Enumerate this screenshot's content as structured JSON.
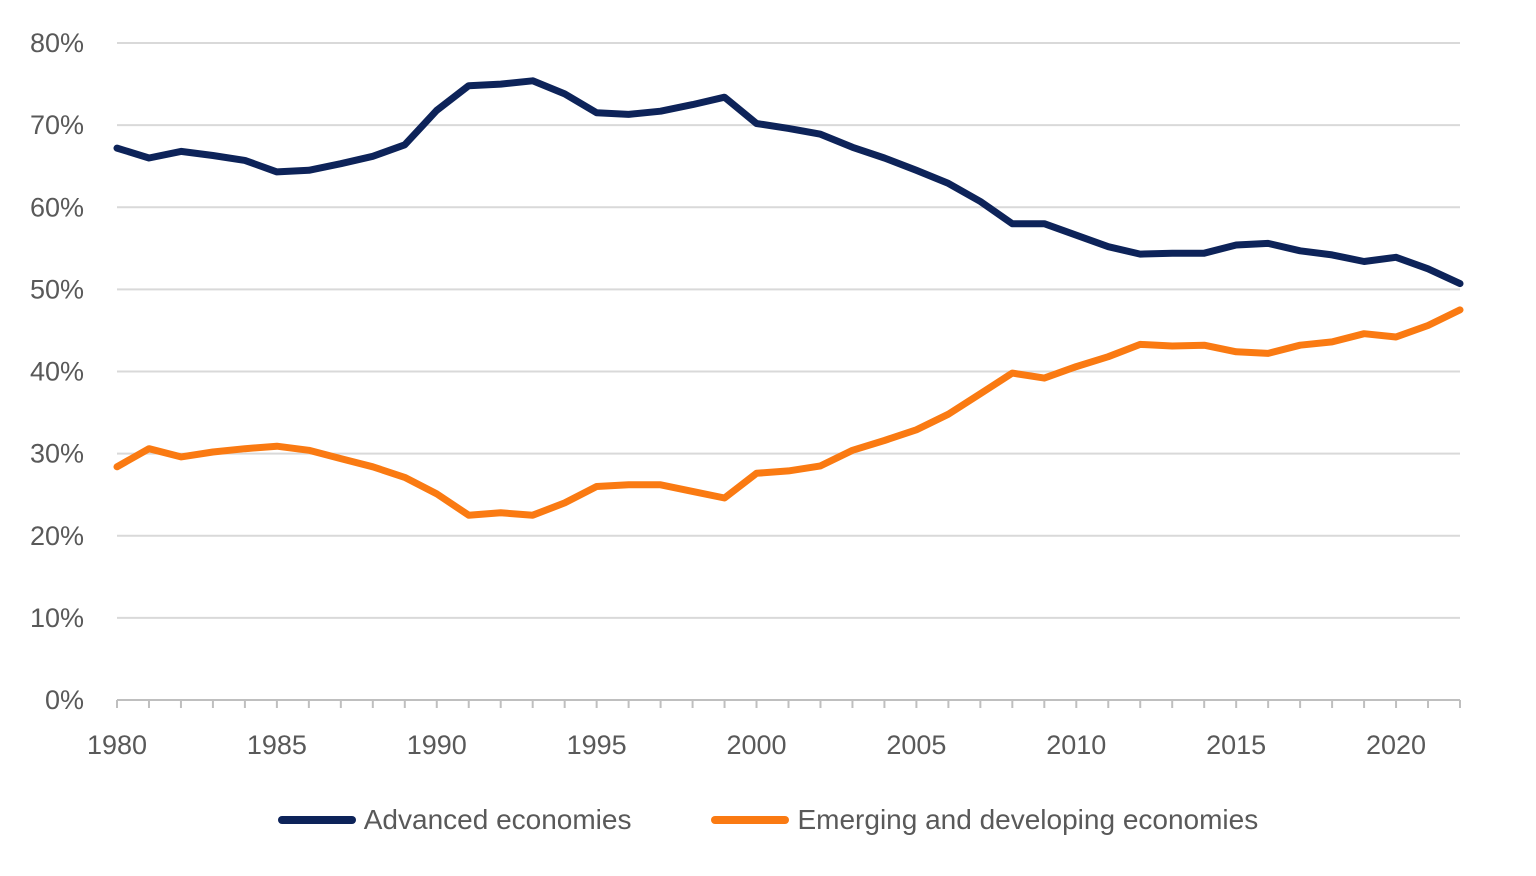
{
  "chart_data": {
    "type": "line",
    "title": "",
    "xlabel": "",
    "ylabel": "",
    "x": [
      1980,
      1981,
      1982,
      1983,
      1984,
      1985,
      1986,
      1987,
      1988,
      1989,
      1990,
      1991,
      1992,
      1993,
      1994,
      1995,
      1996,
      1997,
      1998,
      1999,
      2000,
      2001,
      2002,
      2003,
      2004,
      2005,
      2006,
      2007,
      2008,
      2009,
      2010,
      2011,
      2012,
      2013,
      2014,
      2015,
      2016,
      2017,
      2018,
      2019,
      2020,
      2021,
      2022
    ],
    "xlim": [
      1980,
      2022
    ],
    "ylim": [
      0,
      80
    ],
    "x_ticks": [
      1980,
      1985,
      1990,
      1995,
      2000,
      2005,
      2010,
      2015,
      2020
    ],
    "x_tick_labels": [
      "1980",
      "1985",
      "1990",
      "1995",
      "2000",
      "2005",
      "2010",
      "2015",
      "2020"
    ],
    "y_ticks": [
      0,
      10,
      20,
      30,
      40,
      50,
      60,
      70,
      80
    ],
    "y_tick_labels": [
      "0%",
      "10%",
      "20%",
      "30%",
      "40%",
      "50%",
      "60%",
      "70%",
      "80%"
    ],
    "grid": "horizontal",
    "legend_position": "bottom",
    "series": [
      {
        "name": "Advanced economies",
        "color": "#0d2359",
        "values": [
          67.2,
          66.0,
          66.8,
          66.3,
          65.7,
          64.3,
          64.5,
          65.3,
          66.2,
          67.6,
          71.8,
          74.8,
          75.0,
          75.4,
          73.8,
          71.5,
          71.3,
          71.7,
          72.5,
          73.4,
          70.2,
          69.6,
          68.9,
          67.3,
          66.0,
          64.5,
          62.9,
          60.7,
          58.0,
          58.0,
          56.6,
          55.2,
          54.3,
          54.4,
          54.4,
          55.4,
          55.6,
          54.7,
          54.2,
          53.4,
          53.9,
          52.5,
          50.7
        ]
      },
      {
        "name": "Emerging and developing economies",
        "color": "#fa7a12",
        "values": [
          28.4,
          30.6,
          29.6,
          30.2,
          30.6,
          30.9,
          30.4,
          29.4,
          28.4,
          27.1,
          25.1,
          22.5,
          22.8,
          22.5,
          24.0,
          26.0,
          26.2,
          26.2,
          25.4,
          24.6,
          27.6,
          27.9,
          28.5,
          30.4,
          31.6,
          32.9,
          34.8,
          37.3,
          39.8,
          39.2,
          40.6,
          41.8,
          43.3,
          43.1,
          43.2,
          42.4,
          42.2,
          43.2,
          43.6,
          44.6,
          44.2,
          45.6,
          47.5
        ]
      }
    ]
  }
}
